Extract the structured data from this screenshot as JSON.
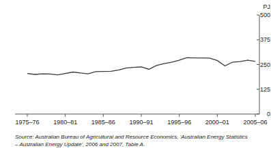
{
  "chart_data": {
    "type": "line",
    "y_label": "PJ",
    "annotations": [
      "Source: Australian Bureau of Agricultural and Resource Economics, 'Australian Energy Statistics",
      "– Australian Energy Update', 2006 and 2007, Table A."
    ],
    "categories": [
      "1975–76",
      null,
      null,
      null,
      null,
      "1980–81",
      null,
      null,
      null,
      null,
      "1985–86",
      null,
      null,
      null,
      null,
      "1990–91",
      null,
      null,
      null,
      null,
      "1995–96",
      null,
      null,
      null,
      null,
      "2000–01",
      null,
      null,
      null,
      null,
      "2005–06"
    ],
    "values": [
      205,
      200,
      203,
      202,
      198,
      205,
      212,
      207,
      203,
      214,
      215,
      216,
      222,
      232,
      236,
      238,
      226,
      245,
      255,
      262,
      272,
      285,
      283,
      283,
      282,
      270,
      243,
      262,
      265,
      272,
      266
    ],
    "color": "#3a3a3a",
    "ylim": [
      0,
      500
    ],
    "yticks": [
      0,
      125,
      250,
      375,
      500
    ],
    "grid": false
  }
}
